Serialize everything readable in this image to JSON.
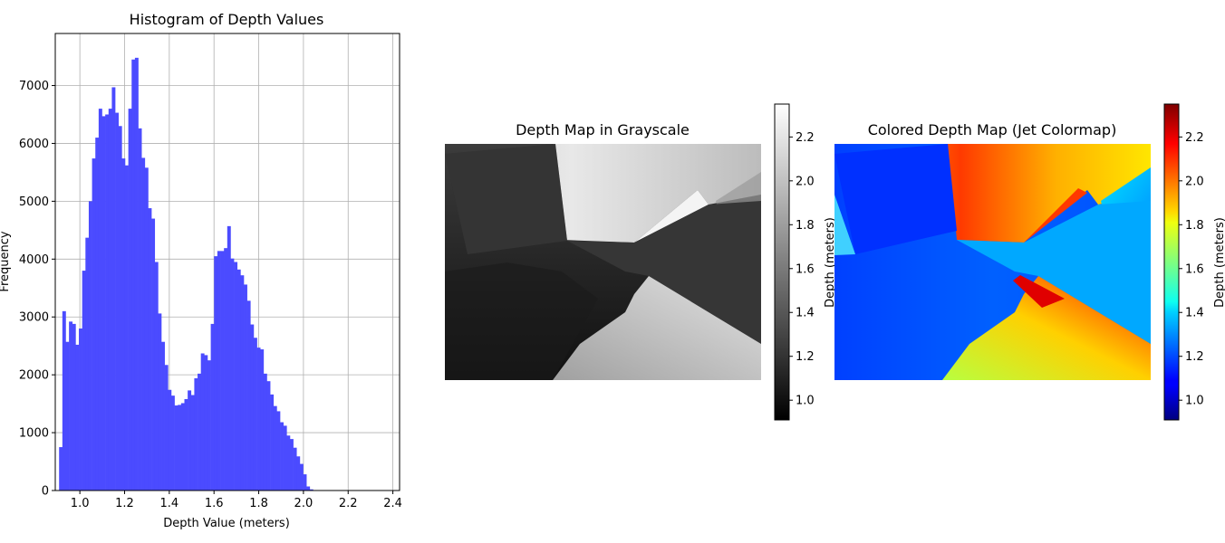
{
  "chart_data": [
    {
      "type": "bar",
      "title": "Histogram of Depth Values",
      "xlabel": "Depth Value (meters)",
      "ylabel": "Frequency",
      "grid": true,
      "xlim": [
        0.89,
        2.43
      ],
      "ylim": [
        0,
        7900
      ],
      "xticks": [
        "1.0",
        "1.2",
        "1.4",
        "1.6",
        "1.8",
        "2.0",
        "2.2",
        "2.4"
      ],
      "yticks": [
        "0",
        "1000",
        "2000",
        "3000",
        "4000",
        "5000",
        "6000",
        "7000"
      ],
      "bar_color": "#4b4bff",
      "bin_start": 0.907,
      "bin_width": 0.01475,
      "values": [
        750,
        3100,
        2570,
        2920,
        2880,
        2520,
        2800,
        3800,
        4370,
        5000,
        5740,
        6100,
        6600,
        6470,
        6500,
        6600,
        6970,
        6530,
        6300,
        5740,
        5620,
        6600,
        7450,
        7480,
        6260,
        5750,
        5580,
        4880,
        4700,
        3950,
        3060,
        2570,
        2170,
        1740,
        1640,
        1470,
        1480,
        1510,
        1580,
        1730,
        1650,
        1940,
        2020,
        2370,
        2340,
        2250,
        2880,
        4050,
        4140,
        4140,
        4190,
        4570,
        4010,
        3950,
        3820,
        3720,
        3560,
        3280,
        2870,
        2640,
        2470,
        2440,
        2020,
        1890,
        1660,
        1460,
        1370,
        1180,
        1120,
        950,
        890,
        740,
        590,
        460,
        280,
        70,
        20,
        8,
        5,
        3,
        2,
        1
      ]
    },
    {
      "type": "heatmap",
      "title": "Depth Map in Grayscale",
      "colormap": "gray",
      "colorbar_label": "Depth (meters)",
      "colorbar_range": [
        0.91,
        2.35
      ],
      "colorbar_ticks": [
        "1.0",
        "1.2",
        "1.4",
        "1.6",
        "1.8",
        "2.0",
        "2.2"
      ]
    },
    {
      "type": "heatmap",
      "title": "Colored Depth Map (Jet Colormap)",
      "colormap": "jet",
      "colorbar_label": "Depth (meters)",
      "colorbar_range": [
        0.91,
        2.35
      ],
      "colorbar_ticks": [
        "1.0",
        "1.2",
        "1.4",
        "1.6",
        "1.8",
        "2.0",
        "2.2"
      ]
    }
  ]
}
